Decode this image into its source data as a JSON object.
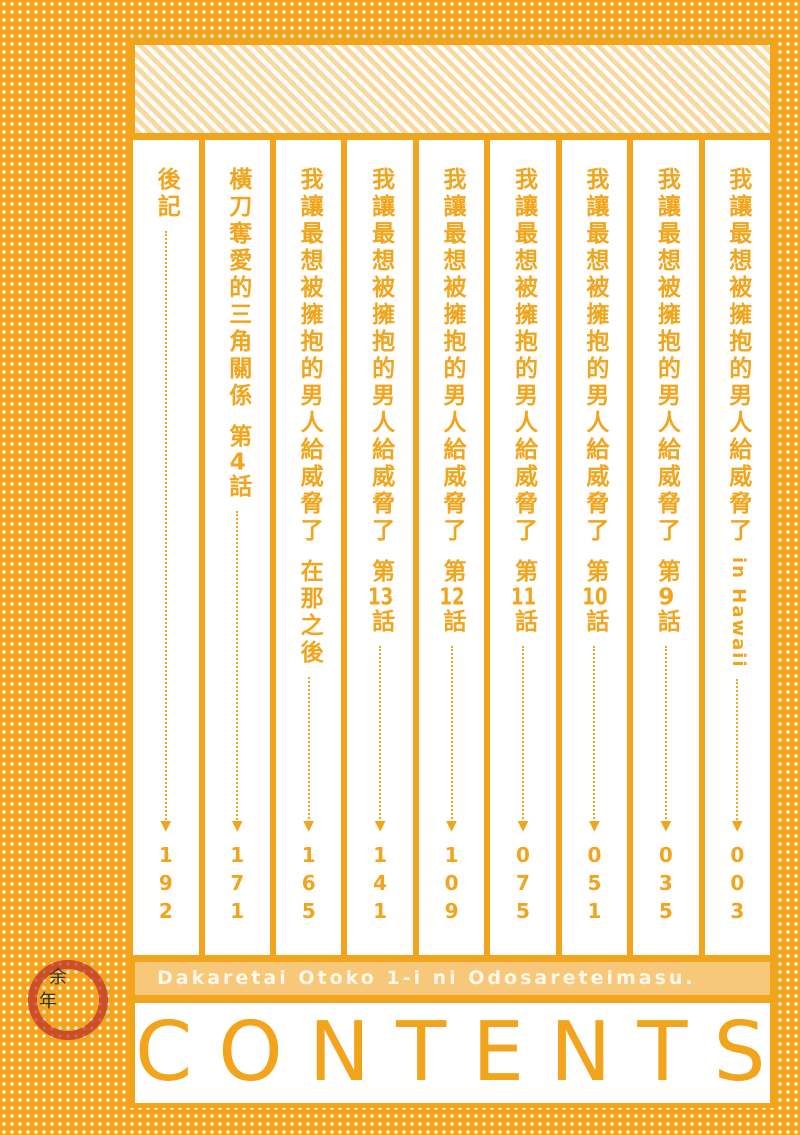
{
  "entries": [
    {
      "title": "我讓最想被擁抱的男人給威脅了",
      "latin": "in Hawaii",
      "pre": "",
      "num": "",
      "post": "",
      "page": "003"
    },
    {
      "title": "我讓最想被擁抱的男人給威脅了",
      "latin": "",
      "pre": "第",
      "num": "9",
      "post": "話",
      "page": "035"
    },
    {
      "title": "我讓最想被擁抱的男人給威脅了",
      "latin": "",
      "pre": "第",
      "num": "10",
      "post": "話",
      "page": "051"
    },
    {
      "title": "我讓最想被擁抱的男人給威脅了",
      "latin": "",
      "pre": "第",
      "num": "11",
      "post": "話",
      "page": "075"
    },
    {
      "title": "我讓最想被擁抱的男人給威脅了",
      "latin": "",
      "pre": "第",
      "num": "12",
      "post": "話",
      "page": "109"
    },
    {
      "title": "我讓最想被擁抱的男人給威脅了",
      "latin": "",
      "pre": "第",
      "num": "13",
      "post": "話",
      "page": "141"
    },
    {
      "title": "我讓最想被擁抱的男人給威脅了",
      "latin": "",
      "pre": "在那之後",
      "num": "",
      "post": "",
      "page": "165"
    },
    {
      "title": "橫刀奪愛的三角關係",
      "latin": "",
      "pre": "第",
      "num": "4",
      "post": "話",
      "page": "171"
    },
    {
      "title": "後記",
      "latin": "",
      "pre": "",
      "num": "",
      "post": "",
      "page": "192"
    }
  ],
  "subtitle": "Dakaretai Otoko 1-i ni Odosareteimasu.",
  "heading": "CONTENTS",
  "watermark": {
    "text": "余年",
    "color": "#be2828"
  },
  "colors": {
    "accent": "#f2a51c",
    "stripe": "#fad9a0"
  },
  "icons": {
    "arrow": "arrow-down-icon"
  }
}
